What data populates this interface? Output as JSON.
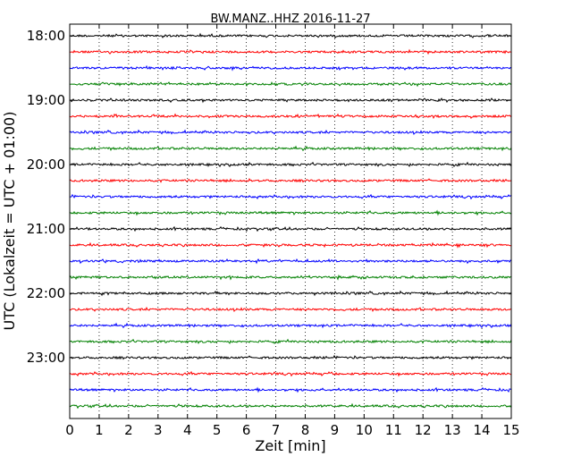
{
  "chart_data": {
    "type": "line",
    "title": "BW.MANZ..HHZ 2016-11-27",
    "xlabel": "Zeit  [min]",
    "ylabel": "UTC (Lokalzeit = UTC + 01:00)",
    "xlim": [
      0,
      15
    ],
    "x_ticks": [
      "0",
      "1",
      "2",
      "3",
      "4",
      "5",
      "6",
      "7",
      "8",
      "9",
      "10",
      "11",
      "12",
      "13",
      "14",
      "15"
    ],
    "y_ticks": [
      "18:00",
      "19:00",
      "20:00",
      "21:00",
      "22:00",
      "23:00"
    ],
    "ylim_hours": [
      18.0,
      24.0
    ],
    "trace_interval_min": 15,
    "trace_start_hours": [
      18.0,
      18.25,
      18.5,
      18.75,
      19.0,
      19.25,
      19.5,
      19.75,
      20.0,
      20.25,
      20.5,
      20.75,
      21.0,
      21.25,
      21.5,
      21.75,
      22.0,
      22.25,
      22.5,
      22.75,
      23.0,
      23.25,
      23.5,
      23.75
    ],
    "trace_colors": [
      "#000000",
      "#ff0000",
      "#0000ff",
      "#008000"
    ],
    "grid": "vertical-dotted",
    "legend": "none"
  }
}
